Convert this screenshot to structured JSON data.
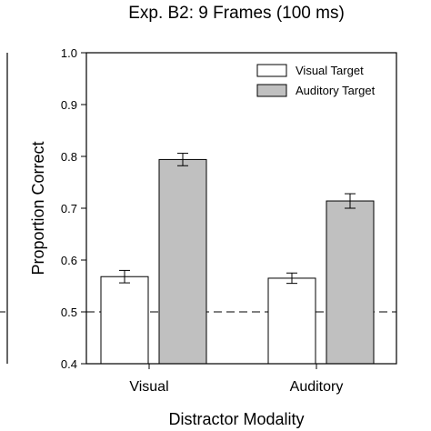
{
  "chart_data": {
    "type": "bar",
    "title": "Exp. B2: 9 Frames (100 ms)",
    "xlabel": "Distractor Modality",
    "ylabel": "Proportion Correct",
    "categories": [
      "Visual",
      "Auditory"
    ],
    "series": [
      {
        "name": "Visual Target",
        "values": [
          0.568,
          0.565
        ],
        "errors": [
          0.012,
          0.01
        ],
        "color": "#ffffff"
      },
      {
        "name": "Auditory Target",
        "values": [
          0.794,
          0.714
        ],
        "errors": [
          0.012,
          0.014
        ],
        "color": "#c0c0c0"
      }
    ],
    "ylim": [
      0.4,
      1.0
    ],
    "yticks": [
      "0.4",
      "0.5",
      "0.6",
      "0.7",
      "0.8",
      "0.9",
      "1.0"
    ],
    "reference_line": 0.5,
    "grid": false,
    "legend_position": "top-right"
  }
}
